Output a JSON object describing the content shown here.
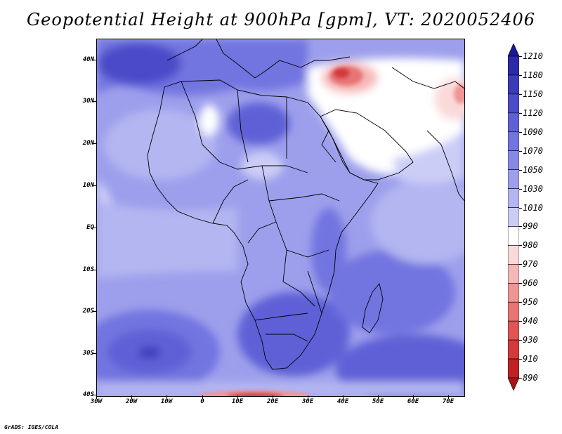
{
  "title": "Geopotential Height at 900hPa [gpm], VT: 2020052406",
  "footer": "GrADS: IGES/COLA",
  "y_axis_labels": [
    "40N",
    "30N",
    "20N",
    "10N",
    "EQ",
    "10S",
    "20S",
    "30S",
    "40S"
  ],
  "x_axis_labels": [
    "30W",
    "20W",
    "10W",
    "0",
    "10E",
    "20E",
    "30E",
    "40E",
    "50E",
    "60E",
    "70E"
  ],
  "colorbar": {
    "levels": [
      "1210",
      "1180",
      "1150",
      "1120",
      "1090",
      "1070",
      "1050",
      "1030",
      "1010",
      "990",
      "980",
      "970",
      "960",
      "950",
      "940",
      "930",
      "910",
      "890"
    ],
    "colors": [
      "#1a1896",
      "#2b2aa8",
      "#3b3bba",
      "#4c4cc9",
      "#5f60d6",
      "#7274e0",
      "#8788e6",
      "#9d9fec",
      "#b4b6f1",
      "#cbcdf6",
      "#ffffff",
      "#fbd9d9",
      "#f6b7b7",
      "#f09494",
      "#e87474",
      "#e05454",
      "#d33a3a",
      "#c02222",
      "#a81414"
    ]
  }
}
